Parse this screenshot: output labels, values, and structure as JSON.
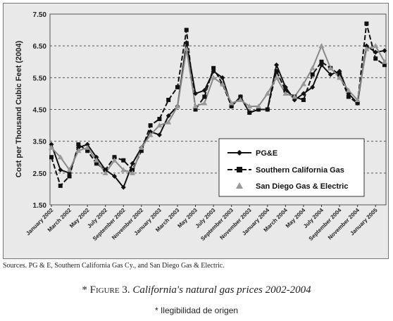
{
  "chart_data": {
    "type": "line",
    "ylabel": "Cost per Thousand Cubic Feet (2004)",
    "xlabel": "",
    "ylim": [
      1.5,
      7.5
    ],
    "yticks": [
      "7.50",
      "6.50",
      "5.50",
      "4.50",
      "3.50",
      "2.50",
      "1.50"
    ],
    "grid": true,
    "legend_position": "bottom-right",
    "categories": [
      "January 2002",
      "February 2002",
      "March 2002",
      "April 2002",
      "May 2002",
      "June 2002",
      "July 2002",
      "August 2002",
      "September 2002",
      "October 2002",
      "November 2002",
      "December 2002",
      "January 2003",
      "February 2003",
      "March 2003",
      "April 2003",
      "May 2003",
      "June 2003",
      "July 2003",
      "August 2003",
      "September 2003",
      "October 2003",
      "November 2003",
      "December 2003",
      "January 2004",
      "February 2004",
      "March 2004",
      "April 2004",
      "May 2004",
      "June 2004",
      "July 2004",
      "August 2004",
      "September 2004",
      "October 2004",
      "November 2004",
      "December 2004",
      "January 2005",
      "February 2005"
    ],
    "xtick_labels": [
      "January 2002",
      "March 2002",
      "May 2002",
      "July 2002",
      "September 2002",
      "November 2002",
      "January 2003",
      "March 2003",
      "May 2003",
      "July 2003",
      "September 2003",
      "November 2003",
      "January 2004",
      "March 2004",
      "May 2004",
      "July 2004",
      "September 2004",
      "November 2004",
      "January 2005"
    ],
    "series": [
      {
        "name": "PG&E",
        "color": "#111111",
        "dash": "",
        "marker": "diamond",
        "values": [
          3.4,
          2.6,
          2.5,
          3.3,
          3.4,
          3.0,
          2.6,
          2.4,
          2.05,
          2.8,
          3.3,
          3.8,
          3.7,
          4.3,
          4.6,
          6.6,
          5.0,
          5.1,
          5.7,
          5.5,
          4.6,
          4.9,
          4.4,
          4.5,
          4.5,
          5.9,
          5.2,
          4.8,
          5.0,
          5.2,
          5.9,
          5.6,
          5.7,
          5.0,
          4.7,
          6.5,
          6.3,
          6.35
        ]
      },
      {
        "name": "Southern California Gas",
        "color": "#111111",
        "dash": "7,3",
        "marker": "square",
        "values": [
          3.0,
          2.1,
          2.4,
          3.4,
          3.2,
          2.8,
          2.6,
          3.0,
          2.9,
          2.6,
          3.2,
          4.0,
          4.2,
          4.8,
          5.2,
          7.0,
          4.5,
          4.9,
          5.8,
          5.3,
          4.6,
          4.9,
          4.4,
          4.5,
          4.5,
          5.7,
          5.1,
          4.9,
          4.8,
          5.6,
          6.0,
          5.8,
          5.6,
          4.9,
          4.7,
          7.2,
          6.1,
          5.9
        ]
      },
      {
        "name": "San Diego Gas & Electric",
        "color": "#888888",
        "dash": "",
        "marker": "triangle",
        "values": [
          3.3,
          3.0,
          2.6,
          3.2,
          3.3,
          2.9,
          2.5,
          2.9,
          2.6,
          2.5,
          3.3,
          3.7,
          4.0,
          4.1,
          4.6,
          6.4,
          4.6,
          4.7,
          5.5,
          5.3,
          4.7,
          4.8,
          4.6,
          4.6,
          5.0,
          5.5,
          5.0,
          4.9,
          5.3,
          5.8,
          6.5,
          5.8,
          5.5,
          5.1,
          4.8,
          6.4,
          6.5,
          6.0
        ]
      }
    ]
  },
  "footer": {
    "sources_prefix": "Sources. ",
    "sources_pge": "PG & E",
    "sources_rest": ", Southern California Gas Cy., and San Diego Gas & Electric.",
    "caption_star": "* ",
    "caption_figure": "Figure 3.",
    "caption_title": " California's natural gas prices 2002-2004",
    "note": "* Ilegibilidad de origen"
  },
  "colors": {
    "plot_bg": "#e9e9e9",
    "legend_bg": "#ffffff",
    "grid": "#555555"
  }
}
